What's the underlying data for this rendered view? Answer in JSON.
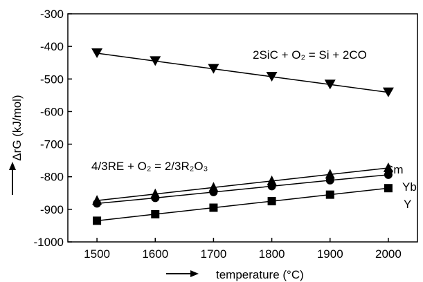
{
  "chart_data": {
    "type": "line",
    "xlabel": "temperature (°C)",
    "ylabel": "ΔrG (kJ/mol)",
    "xlim": [
      1450,
      2050
    ],
    "ylim": [
      -1000,
      -300
    ],
    "x_ticks": [
      1500,
      1600,
      1700,
      1800,
      1900,
      2000
    ],
    "y_ticks": [
      -300,
      -400,
      -500,
      -600,
      -700,
      -800,
      -900,
      -1000
    ],
    "grid": false,
    "x": [
      1500,
      1600,
      1700,
      1800,
      1900,
      2000
    ],
    "series": [
      {
        "name": "",
        "marker": "triangle-down",
        "values": [
          -421,
          -445,
          -469,
          -493,
          -517,
          -541
        ]
      },
      {
        "name": "Sm",
        "marker": "triangle-up",
        "values": [
          -873,
          -853,
          -833,
          -813,
          -793,
          -773
        ]
      },
      {
        "name": "Yb",
        "marker": "circle",
        "values": [
          -882,
          -865,
          -847,
          -829,
          -811,
          -794
        ]
      },
      {
        "name": "Y",
        "marker": "square",
        "values": [
          -935,
          -915,
          -895,
          -875,
          -855,
          -835
        ]
      }
    ],
    "annotations": [
      {
        "text": "2SiC + O₂ = Si + 2CO"
      },
      {
        "text": "4/3RE + O₂ = 2/3R₂O₃"
      }
    ]
  }
}
